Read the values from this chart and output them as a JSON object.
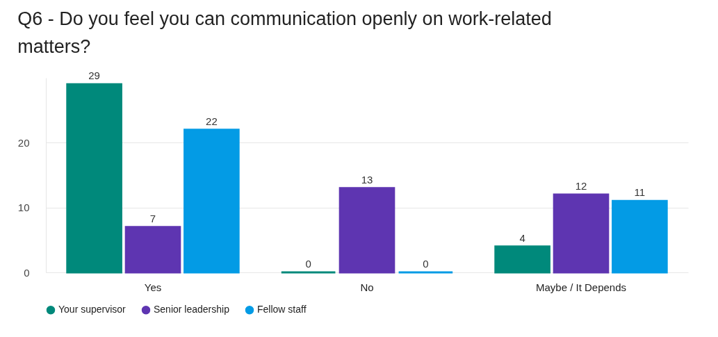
{
  "chart_data": {
    "type": "bar",
    "title": "Q6 - Do you feel you can communication openly on work-related matters?",
    "categories": [
      "Yes",
      "No",
      "Maybe / It Depends"
    ],
    "series": [
      {
        "name": "Your supervisor",
        "color": "#00897b",
        "values": [
          29,
          0,
          4
        ]
      },
      {
        "name": "Senior leadership",
        "color": "#5e35b1",
        "values": [
          7,
          13,
          12
        ]
      },
      {
        "name": "Fellow staff",
        "color": "#039be5",
        "values": [
          22,
          0,
          11
        ]
      }
    ],
    "ylim": [
      0,
      30
    ],
    "yticks": [
      0,
      10,
      20
    ],
    "grid": "y",
    "legend": "bottom",
    "data_labels": true,
    "marker": "circle"
  }
}
